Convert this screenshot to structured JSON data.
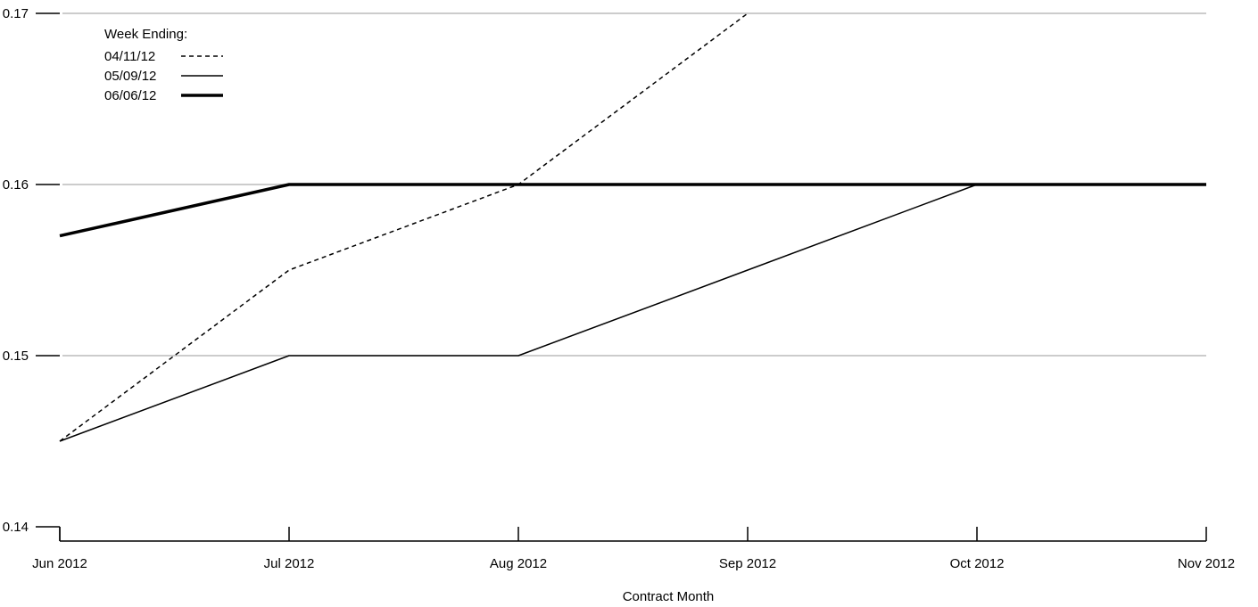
{
  "chart_data": {
    "type": "line",
    "xlabel": "Contract Month",
    "ylabel": "",
    "categories": [
      "Jun 2012",
      "Jul 2012",
      "Aug 2012",
      "Sep 2012",
      "Oct 2012",
      "Nov 2012"
    ],
    "ylim": [
      0.14,
      0.17
    ],
    "yticks": [
      "0.14",
      "0.15",
      "0.16",
      "0.17"
    ],
    "grid": true,
    "legend": {
      "title": "Week Ending:",
      "placement": "top-left"
    },
    "series": [
      {
        "name": "04/11/12",
        "style": "dashed",
        "values": [
          0.145,
          0.155,
          0.16,
          0.17,
          null,
          null
        ]
      },
      {
        "name": "05/09/12",
        "style": "solid",
        "values": [
          0.145,
          0.15,
          0.15,
          0.155,
          0.16,
          0.16
        ]
      },
      {
        "name": "06/06/12",
        "style": "bold",
        "values": [
          0.157,
          0.16,
          0.16,
          0.16,
          0.16,
          0.16
        ]
      }
    ],
    "colors": {
      "line": "#000000",
      "grid": "#bbbbbb"
    }
  }
}
